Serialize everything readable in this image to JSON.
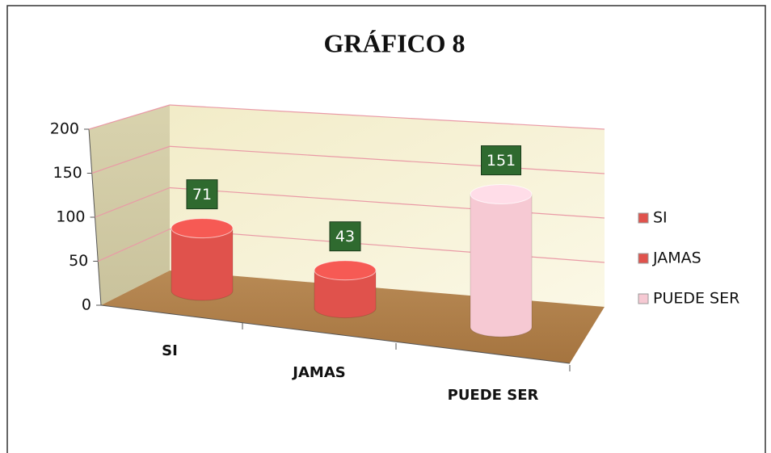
{
  "chart_data": {
    "type": "bar3d",
    "title": "GRÁFICO 8",
    "categories": [
      "SI",
      "JAMAS",
      "PUEDE SER"
    ],
    "values": [
      71,
      43,
      151
    ],
    "colors": [
      "#e0524c",
      "#e0524c",
      "#f6c9d3"
    ],
    "ylim": [
      0,
      200
    ],
    "yticks": [
      0,
      50,
      100,
      150,
      200
    ],
    "grid": true,
    "legend": "right"
  }
}
